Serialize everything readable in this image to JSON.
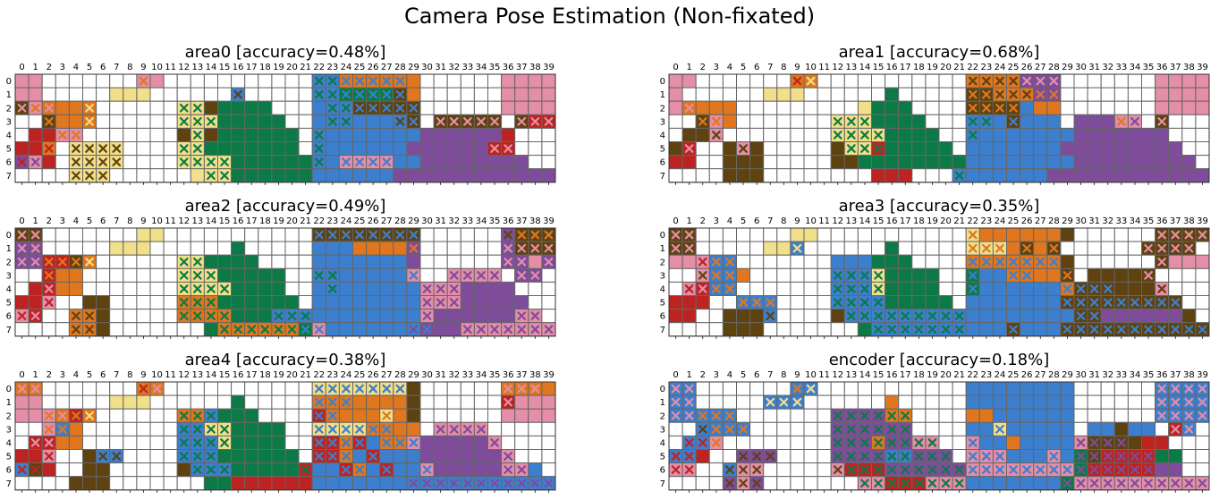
{
  "suptitle": "Camera Pose Estimation (Non-fixated)",
  "palette": {
    "0": "#ffffff",
    "P": "#e48ea7",
    "Y": "#f2df8a",
    "O": "#e0771f",
    "B": "#5e4210",
    "G": "#0c7a46",
    "L": "#3c7fcf",
    "V": "#7f4c9c",
    "R": "#bd2320"
  },
  "legend_note": "Each cell symbol is a color code; a following x marks a mis-classified cell whose X is drawn in the predicted class color (e.g. 'Lx:G' = blue fill, green X).",
  "chart_data": [
    {
      "type": "heatmap",
      "title": "area0 [accuracy=0.48%]",
      "x_ticks": [
        "0",
        "1",
        "2",
        "3",
        "4",
        "5",
        "6",
        "7",
        "8",
        "9",
        "10",
        "11",
        "12",
        "13",
        "14",
        "15",
        "16",
        "17",
        "18",
        "19",
        "20",
        "21",
        "22",
        "23",
        "24",
        "25",
        "26",
        "27",
        "28",
        "29",
        "30",
        "31",
        "32",
        "33",
        "34",
        "35",
        "36",
        "37",
        "38",
        "39"
      ],
      "y_ticks": [
        "0",
        "1",
        "2",
        "3",
        "4",
        "5",
        "6",
        "7"
      ],
      "rows": [
        "P P 0 0 0 0 0 0 0 Px:O P 0 0 0 0 0 0 0 0 0 0 0 Lx:G Lx:G Ox:L Ox:L Ox:L Ox:L Ox:L O 0 0 0 0 0 0 P P P P",
        "P P 0 0 0 0 0 Y Y Y 0 0 0 0 0 0 Lx:B 0 0 0 0 0 Lx:G Lx:G Gx:L Gx:L Gx:L Gx:L Bx:L O 0 0 0 0 0 0 P P P P",
        "Bx:P Px:O Ox:P O O Ox:Y 0 0 0 0 0 0 Yx:G Yx:G B G G G G 0 0 0 L Lx:G Lx:G Bx:L Bx:L Bx:L Bx:L Bx:L 0 0 0 0 0 0 P P P P",
        "0 0 Bx:O O O Ox:Y 0 0 0 0 0 0 Yx:G Yx:G Yx:G G G G G G 0 0 L Lx:G Lx:G L L L Lx:B Bx:L 0 Bx:P Bx:P Bx:P Bx:P Bx:P 0 Bx:P Rx:P Rx:P",
        "0 R R Px:O Px:O 0 0 0 0 0 0 0 B Yx:G B G G G G G G 0 Lx:G L L L L L L L V V V V V V R 0 0 0",
        "R R Ox:R 0 Yx:B Yx:B Yx:B Yx:B 0 0 0 0 Yx:G Yx:G G G G G G G G 0 Lx:G L L L L L L V V V V V V Rx:P Rx:P 0 0 0",
        "Vx:R Px:V R 0 Yx:B Yx:B Yx:B Yx:B 0 0 0 0 Yx:G Yx:G Yx:G Yx:G G G G G G G Lx:G L Px:L Px:L Px:L Px:L L L V V V V V V V V 0 0",
        "0 0 0 0 Yx:B Yx:B Yx:B 0 0 0 0 0 0 Y Yx:G Yx:G G G G G G G L L L L L L V V V V V V V V V V V V"
      ]
    },
    {
      "type": "heatmap",
      "title": "area1 [accuracy=0.68%]",
      "x_ticks": [
        "0",
        "1",
        "2",
        "3",
        "4",
        "5",
        "6",
        "7",
        "8",
        "9",
        "10",
        "11",
        "12",
        "13",
        "14",
        "15",
        "16",
        "17",
        "18",
        "19",
        "20",
        "21",
        "22",
        "23",
        "24",
        "25",
        "26",
        "27",
        "28",
        "29",
        "30",
        "31",
        "32",
        "33",
        "34",
        "35",
        "36",
        "37",
        "38",
        "39"
      ],
      "y_ticks": [
        "0",
        "1",
        "2",
        "3",
        "4",
        "5",
        "6",
        "7"
      ],
      "rows": [
        "P P 0 0 0 0 0 0 0 Ox:R Ox:Y 0 0 0 0 0 0 0 0 0 0 0 Ox:B Ox:B Ox:B Ox:B Vx:P Vx:P Vx:P 0 0 0 0 0 0 0 P P P P",
        "P 0 0 0 0 0 0 Y Y Y 0 0 0 0 0 0 G 0 0 0 0 0 Bx:O Bx:O Ox:B Ox:B Ox:B Vx:O Vx:O 0 0 0 0 0 0 0 P P P P",
        "P Ox:P O O O 0 0 0 0 0 0 0 0 0 Y G G G 0 0 0 0 Bx:O Bx:O Bx:O Bx:O L O O 0 0 0 0 0 0 0 P P P P",
        "0 0 Bx:O Px:O O 0 0 0 0 0 0 0 Yx:G Yx:G Yx:G G G G G 0 0 0 Lx:G Lx:G L Bx:L L L L 0 V V V Px:O Px:V 0 Bx:P 0 0 0",
        "0 B Bx:B Px:B 0 0 0 0 0 0 0 0 Yx:G Yx:G Yx:G Yx:G G G G G 0 0 Lx:G L L L L L L L V V V V V V V 0 0 0",
        "B Rx:P 0 0 B Px:B B 0 0 0 0 0 B Yx:G Yx:G Rx:G G G G G G 0 L L L L L L L V V V V V V V V V 0 0",
        "R R 0 0 B B B 0 0 0 0 0 B B G G G G G G G G L L L L L L L L V V V V V V V V V 0",
        "0 0 0 0 B B B 0 0 0 0 0 0 0 0 R R R 0 0 0 Lx:G L L L L L L V V V V V V V V V V V V"
      ]
    },
    {
      "type": "heatmap",
      "title": "area2 [accuracy=0.49%]",
      "x_ticks": [
        "0",
        "1",
        "2",
        "3",
        "4",
        "5",
        "6",
        "7",
        "8",
        "9",
        "10",
        "11",
        "12",
        "13",
        "14",
        "15",
        "16",
        "17",
        "18",
        "19",
        "20",
        "21",
        "22",
        "23",
        "24",
        "25",
        "26",
        "27",
        "28",
        "29",
        "30",
        "31",
        "32",
        "33",
        "34",
        "35",
        "36",
        "37",
        "38",
        "39"
      ],
      "y_ticks": [
        "0",
        "1",
        "2",
        "3",
        "4",
        "5",
        "6",
        "7"
      ],
      "rows": [
        "Bx:P Bx:P 0 0 0 0 0 0 0 Y Y 0 0 0 0 0 0 0 0 0 0 0 Bx:L Bx:L Bx:L Bx:L Bx:L Bx:L Bx:L Bx:L 0 0 0 0 0 0 Vx:B Bx:O Bx:O Bx:O",
        "Vx:P Vx:P 0 0 0 0 0 Y Y Y 0 0 0 0 0 0 G 0 0 0 0 0 L L L O O O O Vx:O 0 0 0 0 0 0 Vx:P Bx:P Bx:P Bx:P",
        "Vx:P Vx:P Rx:O Rx:O Bx:O Ox:Y 0 0 0 0 0 0 Yx:G Yx:G G G G G 0 0 0 0 L L L L L L L V 0 0 0 0 0 0 Vx:P Vx:P P Vx:P",
        "0 0 Rx:O O O 0 0 0 0 0 0 0 Yx:G Yx:G Yx:G G G G G G 0 0 Lx:G Lx:G L L L L L Px:L 0 0 Px:V Px:V Px:V Px:V 0 Vx:P Vx:P 0",
        "0 R Rx:P O O 0 0 0 0 0 0 0 Yx:G Yx:G Yx:G Yx:G G G G G 0 0 L Lx:G L L L L L L Px:V Px:V Px:V V V V V 0 0 0",
        "R R Px:R 0 0 B B 0 0 0 0 0 Ox:G Ox:G Ox:G G G G G G G 0 L L L L L L L L Px:V Px:V Px:V V V V V V 0 0",
        "Px:R Rx:P 0 0 Ox:B Ox:B B 0 0 0 0 0 Ox:G Ox:G Ox:G Ox:G G G G Lx:G Lx:G Lx:G L L L L L L L L Px:V V V V V V V Px:V Px:V 0",
        "0 0 0 0 Ox:B Ox:B B 0 0 0 0 0 0 0 G Ox:G Ox:G Ox:G Ox:G Ox:G Ox:G Gx:L Px:L L L L L L L Lx:V Vx:L V V Px:V Px:V Px:V Px:V Px:V Px:V Px:V"
      ]
    },
    {
      "type": "heatmap",
      "title": "area3 [accuracy=0.35%]",
      "x_ticks": [
        "0",
        "1",
        "2",
        "3",
        "4",
        "5",
        "6",
        "7",
        "8",
        "9",
        "10",
        "11",
        "12",
        "13",
        "14",
        "15",
        "16",
        "17",
        "18",
        "19",
        "20",
        "21",
        "22",
        "23",
        "24",
        "25",
        "26",
        "27",
        "28",
        "29",
        "30",
        "31",
        "32",
        "33",
        "34",
        "35",
        "36",
        "37",
        "38",
        "39"
      ],
      "y_ticks": [
        "0",
        "1",
        "2",
        "3",
        "4",
        "5",
        "6",
        "7"
      ],
      "rows": [
        "Bx:P Bx:P 0 0 0 0 0 0 0 Y Y 0 0 0 0 0 0 0 0 0 0 0 Yx:O O O O O O O B 0 0 0 0 0 0 Bx:P Bx:P Bx:P Bx:P",
        "Bx:P Bx:P 0 0 0 0 0 Y Y Lx:Y 0 0 0 0 0 0 G 0 0 0 0 0 Yx:O Yx:O Yx:O O Bx:O O Bx:O 0 0 0 0 0 0 Bx:P Bx:P Bx:P Bx:P",
        "P P Px:R Lx:O Lx:O 0 0 0 0 0 0 0 L L L G G G 0 0 0 0 Ox:L Ox:L Ox:L Ox:L Ox:L Ox:L Ox:L B 0 0 0 0 0 0 Bx:P P P P",
        "0 0 Px:B Lx:O Lx:O O 0 0 0 0 0 0 Lx:G Lx:G Lx:G Yx:G G G G G 0 0 Gx:L L L Ox:L Ox:L O O Bx:O 0 B B B B Bx:P 0 0 0 0",
        "0 Px:R Rx:P Lx:O Lx:O 0 0 0 0 0 0 0 Lx:G Lx:G Lx:G Yx:G G G G G 0 0 Gx:L L L L L L L Ox:L Bx:L Bx:L Bx:L B B Bx:B Px:B 0 0 0",
        "R R R 0 0 Lx:O Lx:O Lx:O 0 0 0 0 Lx:G Lx:G Lx:G Lx:G G G G G G 0 L L L L L L L Bx:L Bx:L Bx:L Bx:L Bx:L Bx:L Bx:L Bx:L Bx:L 0 0",
        "R R 0 0 B B B Lx:B 0 0 0 0 B Lx:G Lx:G Lx:G Lx:G Lx:G Lx:G Lx:G Lx:G Lx:G L L L L L L L L Bx:L Bx:L V V V V V V B 0",
        "0 0 0 0 B B B 0 0 0 0 0 0 0 G Lx:G Lx:G Lx:G Lx:G Lx:G Lx:G Lx:G L L L Bx:L L L L Bx:L Bx:L Bx:L Bx:L Bx:L Bx:L Bx:L Bx:L Bx:L Bx:L Bx:L"
      ]
    },
    {
      "type": "heatmap",
      "title": "area4 [accuracy=0.38%]",
      "x_ticks": [
        "0",
        "1",
        "2",
        "3",
        "4",
        "5",
        "6",
        "7",
        "8",
        "9",
        "10",
        "11",
        "12",
        "13",
        "14",
        "15",
        "16",
        "17",
        "18",
        "19",
        "20",
        "21",
        "22",
        "23",
        "24",
        "25",
        "26",
        "27",
        "28",
        "29",
        "30",
        "31",
        "32",
        "33",
        "34",
        "35",
        "36",
        "37",
        "38",
        "39"
      ],
      "y_ticks": [
        "0",
        "1",
        "2",
        "3",
        "4",
        "5",
        "6",
        "7"
      ],
      "rows": [
        "Ox:P Ox:P 0 0 0 0 0 0 0 Ox:R Ox:P 0 0 0 0 0 0 0 0 0 0 0 Yx:L Yx:L Yx:L Yx:L Yx:L Yx:L Yx:L B 0 0 0 0 0 0 Ox:P Ox:P Ox:P O",
        "P P 0 0 0 0 0 Y Y Y 0 0 0 0 0 0 G 0 0 0 0 0 Ox:L Ox:L Ox:L O O O O B 0 0 0 0 0 0 Rx:P P P P",
        "P P Px:O Ox:P Rx:O Ox:Y 0 0 0 0 0 0 Ox:G Ox:G Lx:G G G G 0 0 0 0 Rx:L Ox:L O O O Yx:O O B 0 0 0 0 0 0 P P P P",
        "0 0 Px:O Lx:O O 0 0 0 0 0 0 0 Lx:G Lx:G Yx:G Yx:G G G G G 0 0 Yx:L Yx:L Yx:L Yx:L Ox:L Ox:L O O 0 Px:V Px:V Px:V Px:V 0 0 0 0 0",
        "0 Rx:P Rx:P O O 0 0 0 0 0 0 0 Lx:G Lx:G Lx:G Yx:G G G G G 0 0 Rx:L Rx:L Ox:L Rx:L L Ox:L Ox:L Px:L V V V V V Px:V 0 0 0 0",
        "R R Px:R 0 0 B Lx:B Lx:B 0 0 0 0 Lx:G Lx:G Lx:G G G G G G G 0 Rx:L Rx:L Ox:L L Rx:L L L L V V V V V V Px:V 0 0 0",
        "Lx:R Bx:R R 0 0 B B 0 0 0 0 0 B Lx:G Lx:G Lx:G G G G G G Rx:G L L Rx:L Ox:L L Rx:L L L Px:L V V V V V Px:V Px:V L 0",
        "0 0 0 0 B B B 0 0 0 0 0 0 0 G G R R R R R R Lx:L L L L L L L Lx:V Lx:V Lx:V Lx:V Lx:V Lx:V Lx:V Lx:V Lx:V Lx:V Lx:V"
      ]
    },
    {
      "type": "heatmap",
      "title": "encoder [accuracy=0.18%]",
      "x_ticks": [
        "0",
        "1",
        "2",
        "3",
        "4",
        "5",
        "6",
        "7",
        "8",
        "9",
        "10",
        "11",
        "12",
        "13",
        "14",
        "15",
        "16",
        "17",
        "18",
        "19",
        "20",
        "21",
        "22",
        "23",
        "24",
        "25",
        "26",
        "27",
        "28",
        "29",
        "30",
        "31",
        "32",
        "33",
        "34",
        "35",
        "36",
        "37",
        "38",
        "39"
      ],
      "y_ticks": [
        "0",
        "1",
        "2",
        "3",
        "4",
        "5",
        "6",
        "7"
      ],
      "rows": [
        "Lx:P Lx:P 0 0 0 0 0 0 0 Lx:O Lx:Y 0 0 0 0 0 0 0 0 0 0 0 L L L L L L L L 0 0 0 0 0 0 Lx:P Lx:P Lx:P Lx:P",
        "Lx:P Lx:P 0 0 0 0 0 Lx:Y Lx:Y Lx:Y 0 0 0 0 0 0 O 0 0 0 0 0 L L L L L L L L 0 0 0 0 0 0 Lx:P Lx:P Lx:P Lx:P",
        "Lx:P Lx:P Lx:O Lx:O Lx:O 0 0 0 0 0 0 0 Vx:G Vx:G Vx:G Vx:G Ox:G Ox:G 0 0 0 0 O O L L L L L L 0 0 0 0 0 0 Lx:P Lx:P Lx:P Lx:P",
        "0 0 Lx:B Lx:O Lx:O Lx:O 0 0 0 0 0 0 Vx:G Vx:G Vx:G Vx:G Vx:G Vx:G 0 0 0 0 L L Yx:L L L L L L 0 L L B L L 0 Rx:P Lx:P 0",
        "0 Lx:R Lx:R Px:O 0 0 0 0 0 0 0 0 Vx:G Vx:G Vx:G Ox:G Vx:G Vx:G Px:G Px:G 0 0 Px:L L L O L L L L Px:V Bx:V Bx:V Bx:V B R R 0 0 0",
        "Lx:R Lx:R R 0 0 Vx:B Vx:B Vx:B 0 0 0 0 Vx:G Vx:G Vx:G Vx:G Lx:G Lx:G Vx:G Vx:G Vx:G 0 Px:L Px:L Px:L L L L Px:L L Gx:V Bx:V Rx:V Rx:V Rx:V Rx:V G G 0 0",
        "Px:R Px:R 0 0 Lx:B Px:B Px:B 0 0 0 0 0 Px:B Rx:G Rx:G Rx:G Vx:G Vx:G Vx:G Vx:G Vx:G Vx:G Px:L Px:L Px:L Px:L Px:L Px:L Px:L Px:L Gx:V Rx:V Rx:V Rx:V Rx:V Rx:V V V 0 0",
        "0 0 0 0 Vx:B Px:B Vx:B 0 0 0 0 0 0 0 Px:G Px:G Rx:G Rx:G Rx:G Px:G Px:G Px:G L L L L L L L Gx:V Px:V Px:V Px:V Px:V Px:V Px:V Px:V Px:V Px:V Px:V"
      ]
    }
  ]
}
